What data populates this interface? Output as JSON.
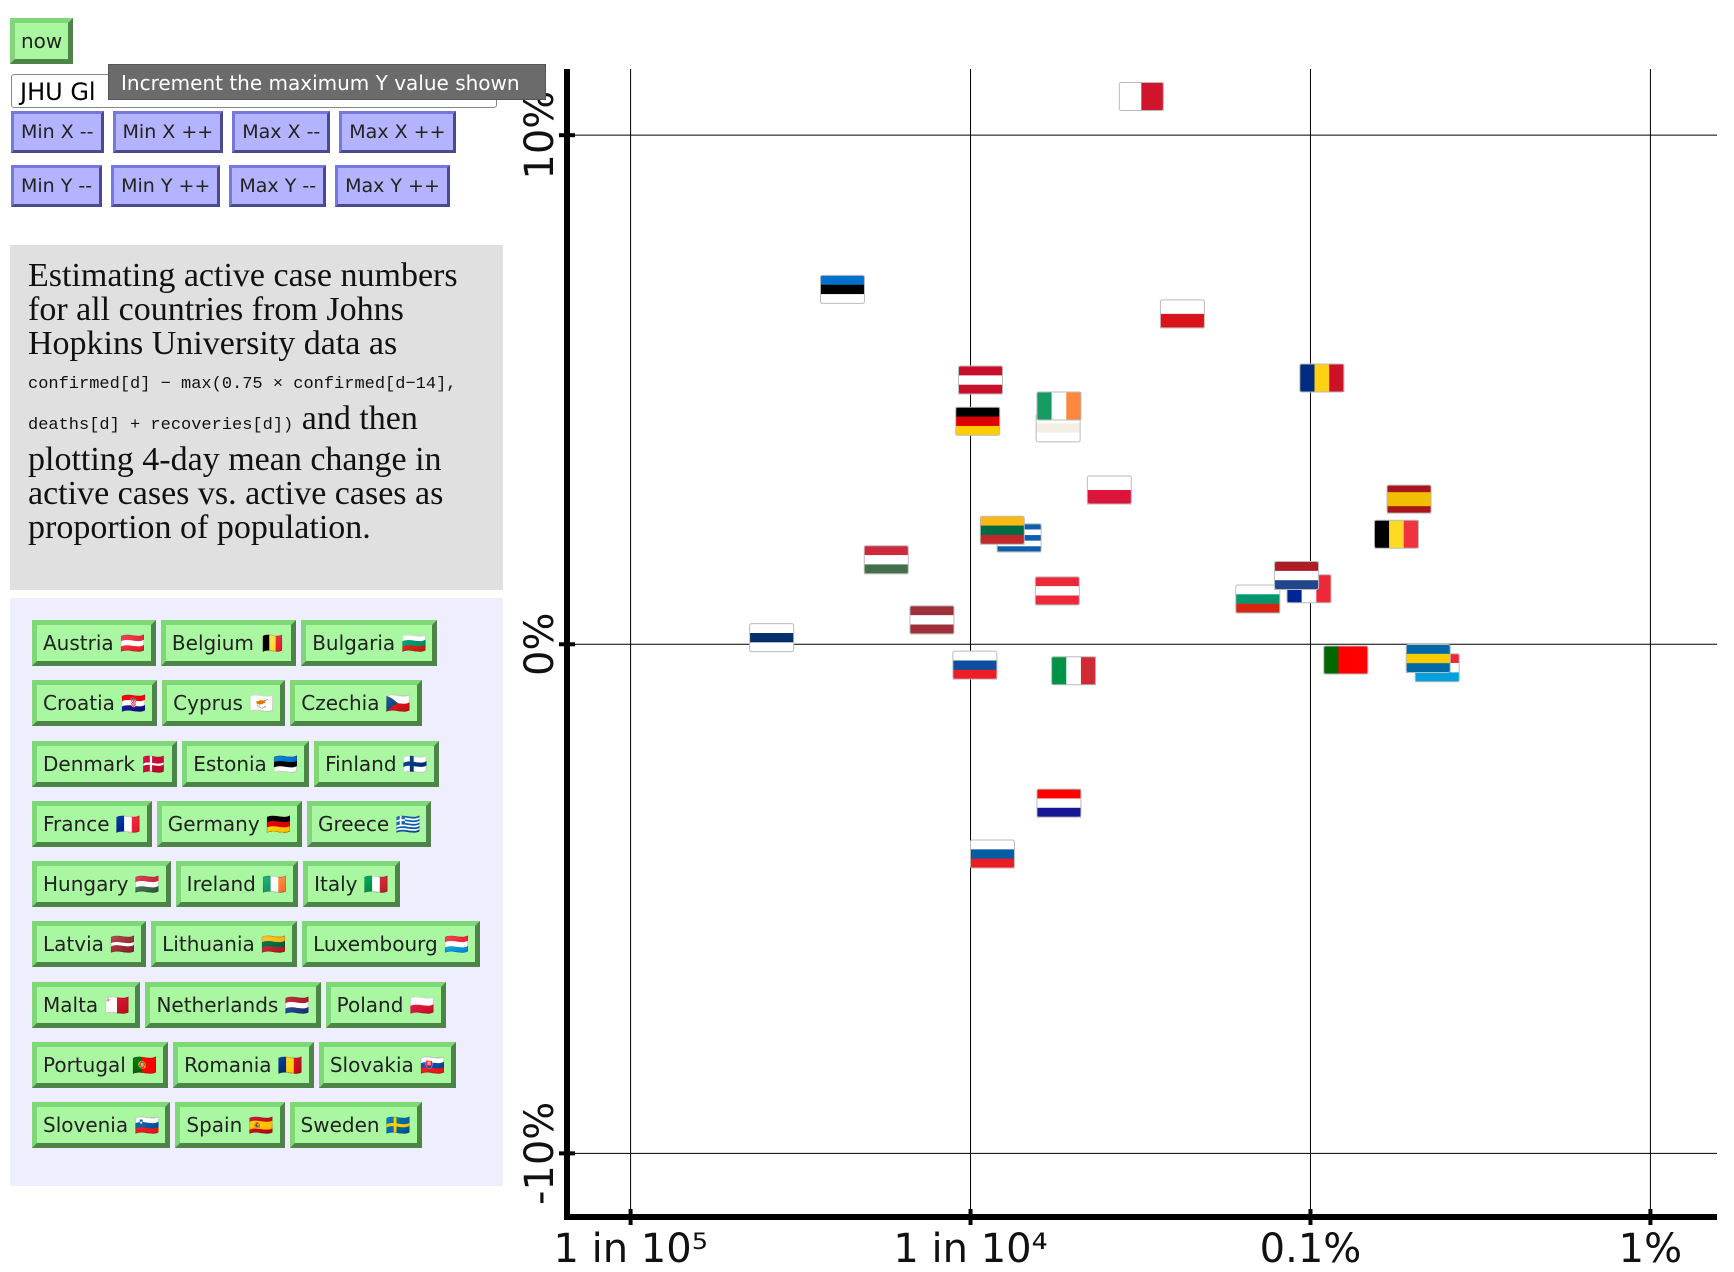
{
  "controls": {
    "now": "now",
    "source": "JHU Gl",
    "tooltip": "Increment the maximum Y value shown",
    "buttons": [
      [
        "Min X --",
        "Min X ++",
        "Max X --",
        "Max X ++"
      ],
      [
        "Min Y --",
        "Min Y ++",
        "Max Y --",
        "Max Y ++"
      ]
    ]
  },
  "description": {
    "text_1": "Estimating active case numbers for all countries from Johns Hopkins University data as ",
    "code": "confirmed[d] − max(0.75 × confirmed[d−14], deaths[d] + recoveries[d])",
    "text_2": " and then plotting 4-day mean change in active cases vs. active cases as proportion of population."
  },
  "countries": [
    "Austria 🇦🇹",
    "Belgium 🇧🇪",
    "Bulgaria 🇧🇬",
    "Croatia 🇭🇷",
    "Cyprus 🇨🇾",
    "Czechia 🇨🇿",
    "Denmark 🇩🇰",
    "Estonia 🇪🇪",
    "Finland 🇫🇮",
    "France 🇫🇷",
    "Germany 🇩🇪",
    "Greece 🇬🇷",
    "Hungary 🇭🇺",
    "Ireland 🇮🇪",
    "Italy 🇮🇹",
    "Latvia 🇱🇻",
    "Lithuania 🇱🇹",
    "Luxembourg 🇱🇺",
    "Malta 🇲🇹",
    "Netherlands 🇳🇱",
    "Poland 🇵🇱",
    "Portugal 🇵🇹",
    "Romania 🇷🇴",
    "Slovakia 🇸🇰",
    "Slovenia 🇸🇮",
    "Spain 🇪🇸",
    "Sweden 🇸🇪"
  ],
  "chart_data": {
    "type": "scatter",
    "xscale": "log",
    "grid": true,
    "x": [
      0.00018,
      0.00179,
      0.0007,
      0.000182,
      0.000181,
      0.00042,
      0.000107,
      4.2e-05,
      2.6e-05,
      0.00099,
      0.000105,
      0.000139,
      5.65e-05,
      0.000182,
      0.000201,
      7.7e-05,
      0.000124,
      0.00236,
      0.000318,
      0.00091,
      0.000256,
      0.00127,
      0.00108,
      0.000103,
      0.000116,
      0.00195,
      0.00222
    ],
    "values": [
      1.05,
      2.16,
      0.89,
      -3.12,
      4.25,
      6.49,
      5.19,
      6.97,
      0.13,
      1.09,
      4.38,
      2.09,
      1.66,
      4.68,
      -0.52,
      0.48,
      2.24,
      -0.46,
      10.76,
      1.35,
      3.03,
      -0.31,
      5.23,
      -0.41,
      -4.12,
      2.85,
      -0.28
    ],
    "point_colors": [
      [
        "#ed2939",
        "#ffffff",
        "#ed2939"
      ],
      [
        "#000000",
        "#fdda24",
        "#ef3340"
      ],
      [
        "#ffffff",
        "#00966e",
        "#d62612"
      ],
      [
        "#ff0000",
        "#ffffff",
        "#171796"
      ],
      [
        "#ffffff",
        "#f3efe4",
        "#ffffff"
      ],
      [
        "#ffffff",
        "#d7141a"
      ],
      [
        "#c8102e",
        "#ffffff",
        "#c8102e"
      ],
      [
        "#0072ce",
        "#000000",
        "#ffffff"
      ],
      [
        "#ffffff",
        "#002f6c",
        "#ffffff"
      ],
      [
        "#002395",
        "#ffffff",
        "#ed2939"
      ],
      [
        "#000000",
        "#dd0000",
        "#ffce00"
      ],
      [
        "#0d5eaf",
        "#ffffff",
        "#0d5eaf",
        "#ffffff",
        "#0d5eaf"
      ],
      [
        "#cd2a3e",
        "#ffffff",
        "#436f4d"
      ],
      [
        "#169b62",
        "#ffffff",
        "#ff883e"
      ],
      [
        "#009246",
        "#ffffff",
        "#ce2b37"
      ],
      [
        "#9e3039",
        "#ffffff",
        "#9e3039"
      ],
      [
        "#fdb913",
        "#006a44",
        "#c1272d"
      ],
      [
        "#ed2939",
        "#ffffff",
        "#00a1de"
      ],
      [
        "#ffffff",
        "#cf142b"
      ],
      [
        "#ae1c28",
        "#ffffff",
        "#21468b"
      ],
      [
        "#ffffff",
        "#dc143c"
      ],
      [
        "#006600",
        "#ff0000",
        "#ff0000"
      ],
      [
        "#002b7f",
        "#fcd116",
        "#ce1126"
      ],
      [
        "#ffffff",
        "#0b4ea2",
        "#ee1c25"
      ],
      [
        "#ffffff",
        "#005da4",
        "#ed1c24"
      ],
      [
        "#aa151b",
        "#f1bf00",
        "#f1bf00",
        "#aa151b"
      ],
      [
        "#006aa7",
        "#fecc00",
        "#006aa7"
      ]
    ],
    "point_stripes": [
      "h",
      "v",
      "h",
      "h",
      "h",
      "h",
      "h",
      "h",
      "h",
      "v",
      "h",
      "h",
      "h",
      "v",
      "v",
      "h",
      "h",
      "h",
      "v",
      "h",
      "h",
      "v",
      "v",
      "h",
      "h",
      "h",
      "h"
    ],
    "xlim": [
      6.5e-06,
      0.0157
    ],
    "xticks": [
      {
        "value": 1e-05,
        "label": "1 in 10⁵"
      },
      {
        "value": 0.0001,
        "label": "1 in 10⁴"
      },
      {
        "value": 0.001,
        "label": "0.1%"
      },
      {
        "value": 0.01,
        "label": "1%"
      }
    ],
    "ylim": [
      -11.25,
      11.3
    ],
    "yticks": [
      {
        "value": -10,
        "label": "-10%"
      },
      {
        "value": 0,
        "label": "0%"
      },
      {
        "value": 10,
        "label": "10%"
      }
    ]
  }
}
